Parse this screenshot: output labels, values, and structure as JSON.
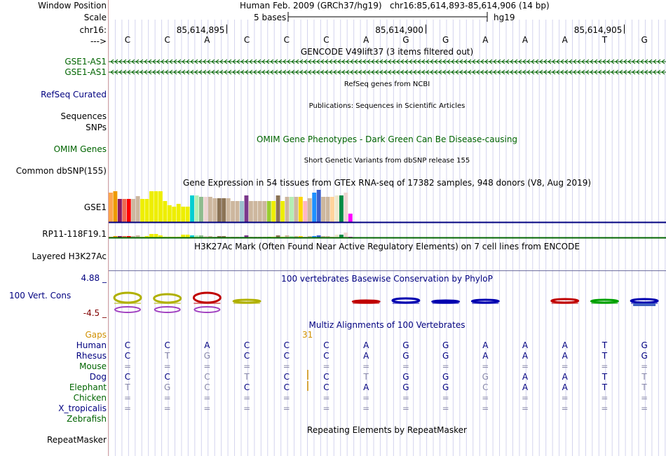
{
  "ruler": {
    "labels": {
      "window_position": "Window Position",
      "scale": "Scale",
      "chrom": "chr16:",
      "strand": "--->"
    },
    "assembly": "Human Feb. 2009 (GRCh37/hg19)",
    "position": "chr16:85,614,893-85,614,906 (14 bp)",
    "scale_text": "5 bases",
    "db": "hg19",
    "coords": [
      "85,614,895",
      "85,614,900",
      "85,614,905"
    ],
    "bases": [
      "C",
      "C",
      "A",
      "C",
      "C",
      "C",
      "A",
      "G",
      "G",
      "A",
      "A",
      "A",
      "T",
      "G"
    ]
  },
  "gencode": {
    "title": "GENCODE V49lift37 (3 items filtered out)",
    "items": [
      "GSE1-AS1",
      "GSE1-AS1"
    ]
  },
  "refseq": {
    "label": "RefSeq Curated",
    "title": "RefSeq genes from NCBI"
  },
  "publications": {
    "label": "Sequences",
    "title": "Publications: Sequences in Scientific Articles"
  },
  "snps_label": "SNPs",
  "omim": {
    "title": "OMIM Gene Phenotypes - Dark Green Can Be Disease-causing",
    "label": "OMIM Genes"
  },
  "dbsnp": {
    "title": "Short Genetic Variants from dbSNP release 155",
    "label": "Common dbSNP(155)"
  },
  "gtex": {
    "title": "Gene Expression in 54 tissues from GTEx RNA-seq of 17382 samples, 948 donors (V8, Aug 2019)",
    "genes": [
      "GSE1",
      "RP11-118F19.1"
    ],
    "gse1_values": [
      42,
      44,
      33,
      33,
      33,
      33,
      37,
      33,
      33,
      44,
      44,
      44,
      30,
      24,
      22,
      26,
      22,
      22,
      38,
      38,
      36,
      36,
      36,
      34,
      34,
      34,
      34,
      30,
      30,
      30,
      38,
      30,
      30,
      30,
      30,
      30,
      30,
      38,
      30,
      36,
      36,
      36,
      36,
      30,
      34,
      42,
      46,
      36,
      36,
      36,
      38,
      38,
      42,
      12
    ],
    "rp11_values": [
      1,
      2,
      2,
      2,
      2,
      2,
      3,
      1,
      2,
      5,
      5,
      3,
      1,
      1,
      1,
      1,
      4,
      4,
      3,
      3,
      3,
      2,
      2,
      1,
      2,
      2,
      1,
      1,
      1,
      1,
      3,
      1,
      1,
      1,
      1,
      1,
      1,
      3,
      1,
      3,
      2,
      2,
      2,
      1,
      2,
      2,
      3,
      2,
      2,
      1,
      4,
      4,
      7,
      1
    ],
    "colors": [
      "#FFA54F",
      "#EE9A00",
      "#8B1C62",
      "#EE6A50",
      "#FF0000",
      "#CDB79E",
      "#CDB79E",
      "#EEEE00",
      "#EEEE00",
      "#EEEE00",
      "#EEEE00",
      "#EEEE00",
      "#EEEE00",
      "#EEEE00",
      "#EEEE00",
      "#EEEE00",
      "#EEEE00",
      "#EEEE00",
      "#00CED1",
      "#B4EEB4",
      "#8FBC8F",
      "#EED5D2",
      "#CDB79E",
      "#CDB79E",
      "#8B7355",
      "#8B7355",
      "#CDB79E",
      "#CDB79E",
      "#CDB79E",
      "#9AC0CD",
      "#7A378B",
      "#CDB79E",
      "#CDB79E",
      "#CDB79E",
      "#CDB79E",
      "#9ACD32",
      "#EEEE00",
      "#8B7355",
      "#EEEE00",
      "#CDB79E",
      "#B4EEB4",
      "#CDB79E",
      "#FFD700",
      "#FFB6C1",
      "#CDB79E",
      "#1E90FF",
      "#3A5FCD",
      "#CDB79E",
      "#CDB79E",
      "#FFD39B",
      "#EEE8CD",
      "#008B45",
      "#EED5D2",
      "#FF00FF"
    ]
  },
  "h3k27ac": {
    "title": "H3K27Ac Mark (Often Found Near Active Regulatory Elements) on 7 cell lines from ENCODE",
    "label": "Layered H3K27Ac"
  },
  "phylop": {
    "title": "100 vertebrates Basewise Conservation by PhyloP",
    "label": "100 Vert. Cons",
    "max": "4.88 _",
    "min": "-4.5 _"
  },
  "multiz": {
    "title": "Multiz Alignments of 100 Vertebrates",
    "gaps_label": "Gaps",
    "gap_count": "31",
    "species": [
      "Human",
      "Rhesus",
      "Mouse",
      "Dog",
      "Elephant",
      "Chicken",
      "X_tropicalis",
      "Zebrafish"
    ],
    "rows": [
      [
        "C",
        "C",
        "A",
        "C",
        "C",
        "C",
        "A",
        "G",
        "G",
        "A",
        "A",
        "A",
        "T",
        "G"
      ],
      [
        "C",
        "T",
        "G",
        "C",
        "C",
        "C",
        "A",
        "G",
        "G",
        "A",
        "A",
        "A",
        "T",
        "G"
      ],
      [
        "=",
        "=",
        "=",
        "=",
        "=",
        "=",
        "=",
        "=",
        "=",
        "=",
        "=",
        "=",
        "=",
        "="
      ],
      [
        "C",
        "C",
        "C",
        "T",
        "C",
        "C",
        "T",
        "G",
        "G",
        "G",
        "A",
        "A",
        "T",
        "T"
      ],
      [
        "T",
        "G",
        "C",
        "C",
        "C",
        "C",
        "A",
        "G",
        "G",
        "C",
        "A",
        "A",
        "T",
        "T"
      ],
      [
        "=",
        "=",
        "=",
        "=",
        "=",
        "=",
        "=",
        "=",
        "=",
        "=",
        "=",
        "=",
        "=",
        "="
      ],
      [
        "=",
        "=",
        "=",
        "=",
        "=",
        "=",
        "=",
        "=",
        "=",
        "=",
        "=",
        "=",
        "=",
        "="
      ],
      [
        "",
        "",
        "",
        "",
        "",
        "",
        "",
        "",
        "",
        "",
        "",
        "",
        "",
        ""
      ]
    ],
    "match_mask": [
      [
        1,
        1,
        1,
        1,
        1,
        1,
        1,
        1,
        1,
        1,
        1,
        1,
        1,
        1
      ],
      [
        1,
        0,
        0,
        1,
        1,
        1,
        1,
        1,
        1,
        1,
        1,
        1,
        1,
        1
      ],
      [
        0,
        0,
        0,
        0,
        0,
        0,
        0,
        0,
        0,
        0,
        0,
        0,
        0,
        0
      ],
      [
        1,
        1,
        0,
        0,
        1,
        1,
        0,
        1,
        1,
        0,
        1,
        1,
        1,
        0
      ],
      [
        0,
        0,
        0,
        1,
        1,
        1,
        1,
        1,
        1,
        0,
        1,
        1,
        1,
        0
      ],
      [
        0,
        0,
        0,
        0,
        0,
        0,
        0,
        0,
        0,
        0,
        0,
        0,
        0,
        0
      ],
      [
        0,
        0,
        0,
        0,
        0,
        0,
        0,
        0,
        0,
        0,
        0,
        0,
        0,
        0
      ],
      [
        0,
        0,
        0,
        0,
        0,
        0,
        0,
        0,
        0,
        0,
        0,
        0,
        0,
        0
      ]
    ]
  },
  "repeatmasker": {
    "title": "Repeating Elements by RepeatMasker",
    "label": "RepeatMasker"
  },
  "colors": {
    "navy": "#000080",
    "darkgreen": "#006400",
    "orange": "#D09000",
    "maroon": "#800000",
    "gray_blue": "#7070A0"
  }
}
